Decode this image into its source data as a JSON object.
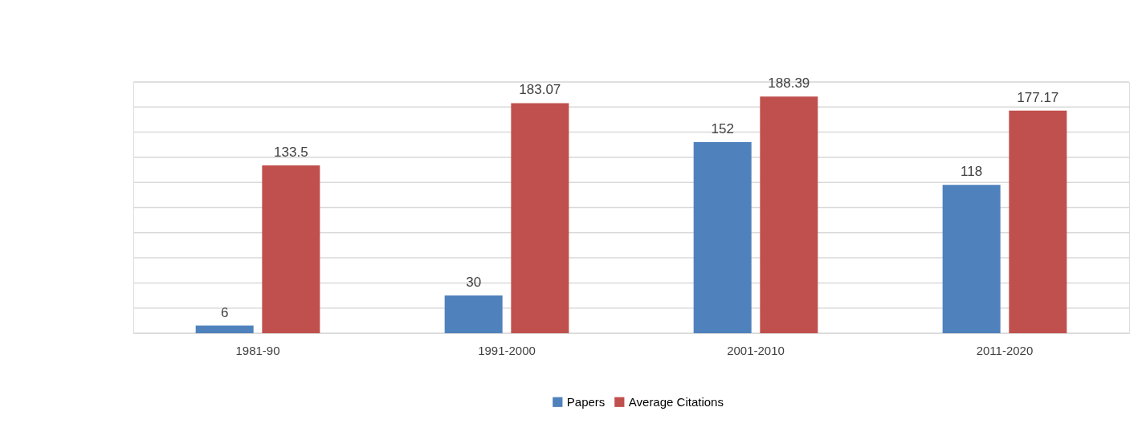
{
  "chart_data": {
    "type": "bar",
    "categories": [
      "1981-90",
      "1991-2000",
      "2001-2010",
      "2011-2020"
    ],
    "series": [
      {
        "name": "Papers",
        "color": "#4f81bd",
        "values": [
          6,
          30,
          152,
          118
        ]
      },
      {
        "name": "Average Citations",
        "color": "#c0504d",
        "values": [
          133.5,
          183.07,
          188.39,
          177.17
        ]
      }
    ],
    "ylim": [
      0,
      200
    ],
    "yticks": [
      {
        "value": 0,
        "label": null
      },
      {
        "value": 20,
        "label": null
      },
      {
        "value": 40,
        "label": null
      },
      {
        "value": 60,
        "label": null
      },
      {
        "value": 80,
        "label": null
      },
      {
        "value": 100,
        "label": null
      },
      {
        "value": 120,
        "label": null
      },
      {
        "value": 140,
        "label": null
      },
      {
        "value": 160,
        "label": null
      },
      {
        "value": 180,
        "label": null
      },
      {
        "value": 200,
        "label": null
      }
    ],
    "tick_labels": "x",
    "grid": "y",
    "legend": "bottom",
    "data_labels": true
  }
}
